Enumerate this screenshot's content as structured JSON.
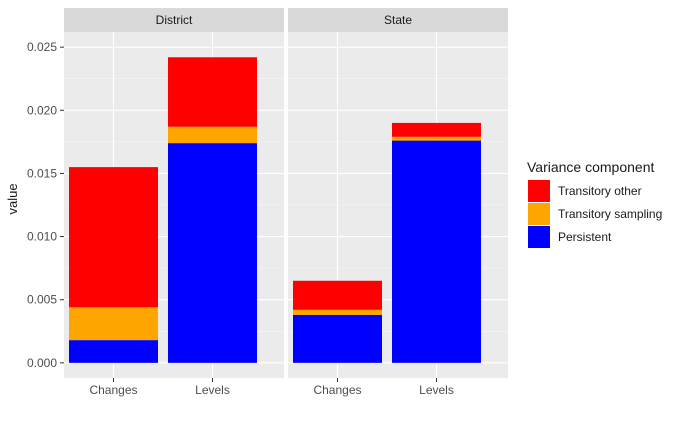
{
  "chart_data": {
    "type": "bar",
    "stacked": true,
    "ylabel": "value",
    "xlabel": "",
    "ylim": [
      -0.0012,
      0.0262
    ],
    "yticks": [
      "0.000",
      "0.005",
      "0.010",
      "0.015",
      "0.020",
      "0.025"
    ],
    "ytick_values": [
      0,
      0.005,
      0.01,
      0.015,
      0.02,
      0.025
    ],
    "categories": [
      "Changes",
      "Levels"
    ],
    "legend": {
      "title": "Variance component",
      "position": "right",
      "items": [
        {
          "label": "Transitory other",
          "color": "#ff0000"
        },
        {
          "label": "Transitory sampling",
          "color": "#ffa500"
        },
        {
          "label": "Persistent",
          "color": "#0000ff"
        }
      ]
    },
    "panels": [
      {
        "name": "District",
        "series": [
          {
            "component": "Persistent",
            "color": "#0000ff",
            "values": [
              0.0018,
              0.0174
            ]
          },
          {
            "component": "Transitory sampling",
            "color": "#ffa500",
            "values": [
              0.0026,
              0.0013
            ]
          },
          {
            "component": "Transitory other",
            "color": "#ff0000",
            "values": [
              0.0111,
              0.0055
            ]
          }
        ]
      },
      {
        "name": "State",
        "series": [
          {
            "component": "Persistent",
            "color": "#0000ff",
            "values": [
              0.0038,
              0.0176
            ]
          },
          {
            "component": "Transitory sampling",
            "color": "#ffa500",
            "values": [
              0.0004,
              0.0003
            ]
          },
          {
            "component": "Transitory other",
            "color": "#ff0000",
            "values": [
              0.0023,
              0.0011
            ]
          }
        ]
      }
    ]
  }
}
